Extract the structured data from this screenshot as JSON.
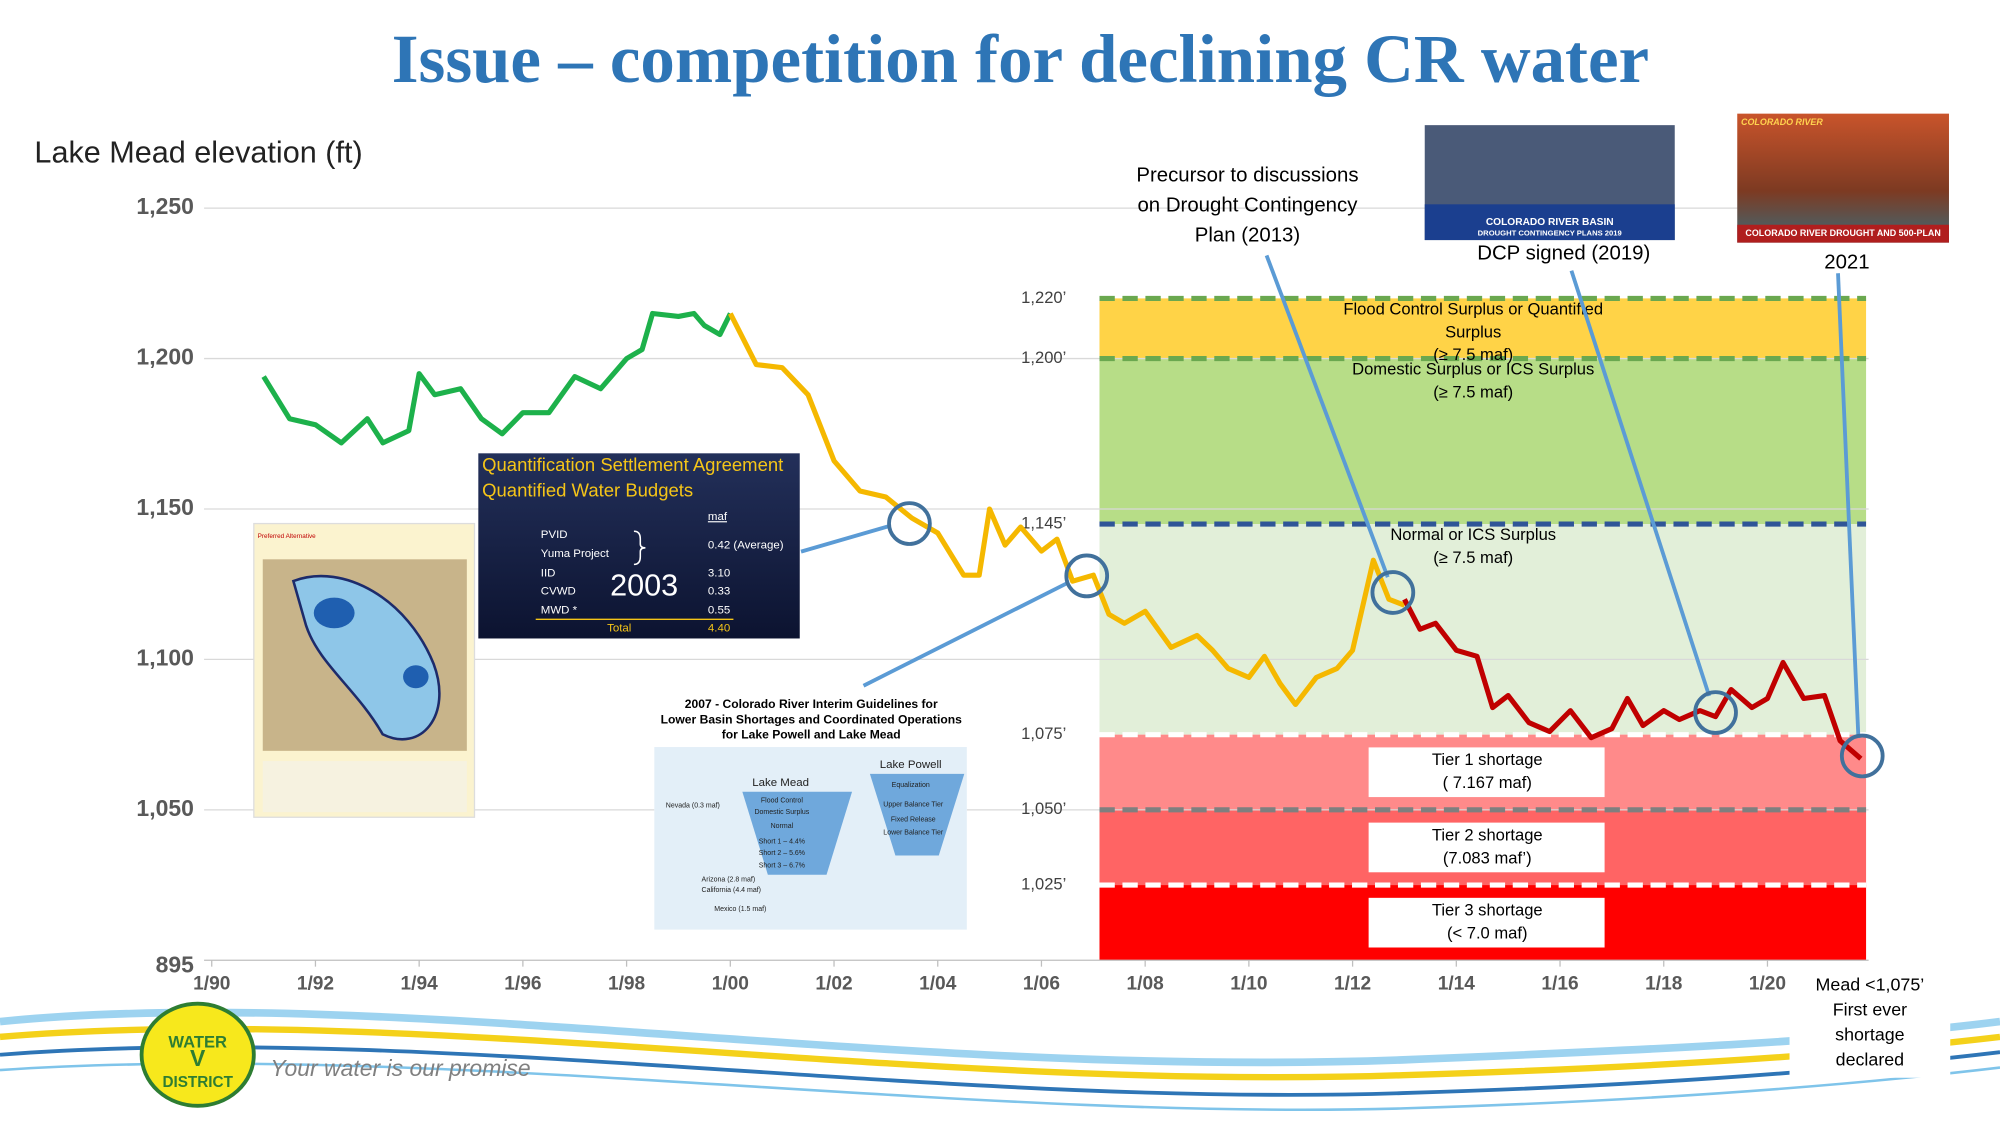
{
  "title": "Issue – competition for declining CR water",
  "chart_data": {
    "type": "line",
    "y_label": "Lake Mead elevation (ft)",
    "xlim": [
      1990,
      2022
    ],
    "xticks": [
      {
        "value": 1990,
        "label": "1/90"
      },
      {
        "value": 1992,
        "label": "1/92"
      },
      {
        "value": 1994,
        "label": "1/94"
      },
      {
        "value": 1996,
        "label": "1/96"
      },
      {
        "value": 1998,
        "label": "1/98"
      },
      {
        "value": 2000,
        "label": "1/00"
      },
      {
        "value": 2002,
        "label": "1/02"
      },
      {
        "value": 2004,
        "label": "1/04"
      },
      {
        "value": 2006,
        "label": "1/06"
      },
      {
        "value": 2008,
        "label": "1/08"
      },
      {
        "value": 2010,
        "label": "1/10"
      },
      {
        "value": 2012,
        "label": "1/12"
      },
      {
        "value": 2014,
        "label": "1/14"
      },
      {
        "value": 2016,
        "label": "1/16"
      },
      {
        "value": 2018,
        "label": "1/18"
      },
      {
        "value": 2020,
        "label": "1/20"
      }
    ],
    "ylim": [
      895,
      1250
    ],
    "yticks": [
      895,
      {
        "value": 1050,
        "label": "1,050"
      },
      {
        "value": 1100,
        "label": "1,100"
      },
      {
        "value": 1150,
        "label": "1,150"
      },
      {
        "value": 1200,
        "label": "1,200"
      },
      {
        "value": 1250,
        "label": "1,250"
      }
    ],
    "grid": true,
    "series": [
      {
        "color": "#1db14b",
        "x": [
          1991.0,
          1991.5,
          1992.0,
          1992.5,
          1993.0,
          1993.3,
          1993.8,
          1994.0,
          1994.3,
          1994.8,
          1995.2,
          1995.6,
          1996.0,
          1996.5,
          1997.0,
          1997.5,
          1998.0,
          1998.3,
          1998.5,
          1999.0,
          1999.3,
          1999.5,
          1999.8,
          2000.0
        ],
        "values": [
          1194,
          1180,
          1178,
          1172,
          1180,
          1172,
          1176,
          1195,
          1188,
          1190,
          1180,
          1175,
          1182,
          1182,
          1194,
          1190,
          1200,
          1203,
          1215,
          1214,
          1215,
          1211,
          1208,
          1215
        ]
      },
      {
        "color": "#f5b800",
        "x": [
          2000.0,
          2000.5,
          2001.0,
          2001.5,
          2002.0,
          2002.5,
          2003.0,
          2003.5,
          2004.0,
          2004.5,
          2004.8,
          2005.0,
          2005.3,
          2005.6,
          2006.0,
          2006.3,
          2006.6,
          2007.0,
          2007.3,
          2007.6,
          2008.0,
          2008.5,
          2009.0,
          2009.3,
          2009.6,
          2010.0,
          2010.3,
          2010.6,
          2010.9,
          2011.3,
          2011.7,
          2012.0,
          2012.4,
          2012.7,
          2013.0
        ],
        "values": [
          1215,
          1198,
          1197,
          1188,
          1166,
          1156,
          1154,
          1147,
          1142,
          1128,
          1128,
          1150,
          1138,
          1144,
          1136,
          1140,
          1126,
          1128,
          1115,
          1112,
          1116,
          1104,
          1108,
          1103,
          1097,
          1094,
          1101,
          1092,
          1085,
          1094,
          1097,
          1103,
          1133,
          1120,
          1118
        ]
      },
      {
        "color": "#c00000",
        "x": [
          2013.0,
          2013.3,
          2013.6,
          2014.0,
          2014.4,
          2014.7,
          2015.0,
          2015.4,
          2015.8,
          2016.2,
          2016.6,
          2017.0,
          2017.3,
          2017.6,
          2018.0,
          2018.3,
          2018.7,
          2019.0,
          2019.3,
          2019.7,
          2020.0,
          2020.3,
          2020.7,
          2021.1,
          2021.4,
          2021.8
        ],
        "values": [
          1120,
          1110,
          1112,
          1103,
          1101,
          1084,
          1088,
          1079,
          1076,
          1083,
          1074,
          1077,
          1087,
          1078,
          1083,
          1080,
          1083,
          1081,
          1090,
          1084,
          1087,
          1099,
          1087,
          1088,
          1073,
          1067
        ]
      }
    ],
    "zone_ticks": [
      {
        "value": 1220,
        "label": "1,220’",
        "color": "#6aa84f"
      },
      {
        "value": 1200,
        "label": "1,200’",
        "color": "#6aa84f"
      },
      {
        "value": 1145,
        "label": "1,145’",
        "color": "#2f5597"
      },
      {
        "value": 1075,
        "label": "1,075’",
        "color": "#ffffff"
      },
      {
        "value": 1050,
        "label": "1,050’",
        "color": "#7f7f7f"
      },
      {
        "value": 1025,
        "label": "1,025’",
        "color": "#ffffff"
      }
    ],
    "zones": [
      {
        "color": "#ffd347",
        "boxed": false,
        "lines": [
          "Flood Control Surplus or Quantified",
          "Surplus",
          "(≥ 7.5 maf)"
        ]
      },
      {
        "color": "#b7dd87",
        "boxed": false,
        "lines": [
          "Domestic Surplus or ICS Surplus",
          "(≥ 7.5 maf)"
        ]
      },
      {
        "color": "#e2efd9",
        "boxed": false,
        "lines": [
          "Normal or ICS Surplus",
          "(≥ 7.5 maf)"
        ]
      },
      {
        "color": "#ff8a8a",
        "boxed": true,
        "lines": [
          "Tier 1 shortage",
          "( 7.167 maf)"
        ]
      },
      {
        "color": "#ff6464",
        "boxed": true,
        "lines": [
          "Tier 2 shortage",
          "(7.083 maf’)"
        ]
      },
      {
        "color": "#ff0000",
        "boxed": true,
        "lines": [
          "Tier 3 shortage",
          "(< 7.0 maf)"
        ]
      }
    ],
    "annotations": [
      {
        "lines": [
          "Precursor to discussions",
          "on Drought Contingency",
          "Plan (2013)"
        ]
      },
      {
        "lines": [
          "DCP signed (2019)"
        ]
      },
      {
        "lines": [
          "2021"
        ]
      },
      {
        "lines": [
          "Mead <1,075’",
          "First ever",
          "shortage",
          "declared"
        ]
      }
    ]
  },
  "insets": {
    "qsa": {
      "title": [
        "Quantification Settlement Agreement",
        "Quantified Water Budgets"
      ],
      "unit": "maf",
      "year": "2003",
      "rows": [
        [
          "PVID",
          ""
        ],
        [
          "Yuma Project",
          "0.42 (Average)"
        ],
        [
          "IID",
          "3.10"
        ],
        [
          "CVWD",
          "0.33"
        ],
        [
          "MWD *",
          "0.55"
        ],
        [
          "Total",
          "4.40"
        ]
      ]
    },
    "map": {
      "title": "Preferred Alternative"
    },
    "guidelines": {
      "title": [
        "2007 - Colorado River Interim Guidelines for",
        "Lower Basin Shortages and Coordinated Operations",
        "for Lake Powell and Lake Mead"
      ],
      "labels": [
        "Lake Mead",
        "Lake Powell",
        "Nevada (0.3 maf)",
        "Flood Control",
        "Domestic Surplus",
        "Normal",
        "Short 1 – 4.4%",
        "Short 2 – 5.6%",
        "Short 3 – 6.7%",
        "Equalization",
        "Upper Balance Tier",
        "Fixed Release",
        "Lower Balance Tier",
        "Arizona (2.8 maf)",
        "California (4.4 maf)",
        "Mexico (1.5 maf)"
      ]
    },
    "photo_dcp": [
      "COLORADO RIVER BASIN",
      "DROUGHT CONTINGENCY PLANS 2019"
    ],
    "photo_river": [
      "COLORADO RIVER",
      "COLORADO RIVER DROUGHT AND 500-PLAN"
    ]
  },
  "footer": {
    "tagline": "Your water is our promise",
    "logo": [
      "WATER",
      "V",
      "DISTRICT"
    ]
  }
}
